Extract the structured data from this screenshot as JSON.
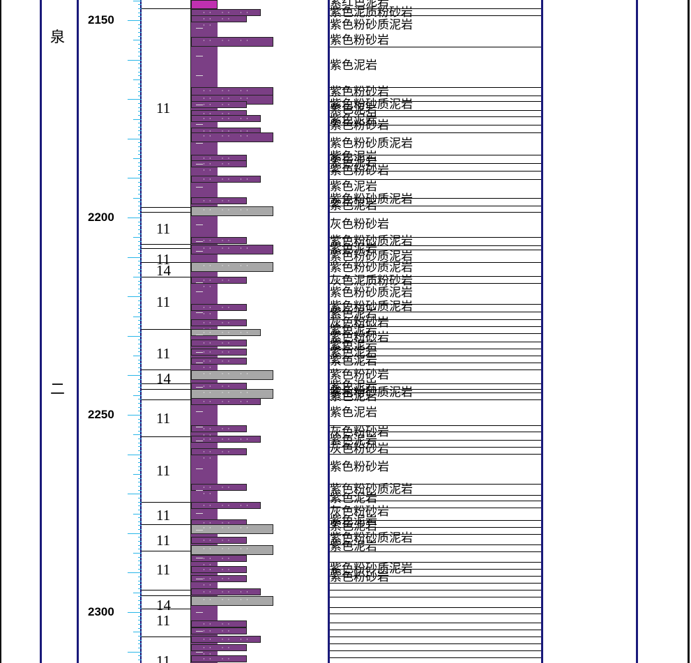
{
  "strata_names": [
    "泉",
    "二"
  ],
  "depth_labels": [
    "2150",
    "2200",
    "2250",
    "2300"
  ],
  "colors": {
    "frame": "#1a1a7a",
    "tick": "#29b6e8",
    "purple_column": "#7b3f85",
    "magenta": "#c030b0",
    "gray_sand": "#a8a8a8"
  },
  "layer_codes": [
    "11",
    "11",
    "11",
    "14",
    "11",
    "11",
    "14",
    "11",
    "11",
    "11",
    "11",
    "11",
    "14",
    "11",
    "11"
  ],
  "lithology_labels": [
    "紫红色泥岩",
    "紫色泥质粉砂岩",
    "紫色粉砂质泥岩",
    "紫色粉砂岩",
    "紫色泥岩",
    "紫色粉砂岩",
    "紫色粉砂质泥岩",
    "紫色泥岩",
    "紫色泥岩",
    "紫色粉砂岩",
    "紫色粉砂质泥岩",
    "紫色泥岩",
    "紫色泥岩",
    "紫色粉砂岩",
    "紫色泥岩",
    "紫色粉砂质泥岩",
    "紫色泥岩",
    "灰色粉砂岩",
    "紫色粉砂质泥岩",
    "紫色泥岩",
    "紫色粉砂质泥岩",
    "紫色粉砂质泥岩",
    "灰色泥质粉砂岩",
    "紫色粉砂质泥岩",
    "紫色粉砂质泥岩",
    "紫色泥岩",
    "灰色粉砂岩",
    "紫色泥岩",
    "紫色粉砂岩",
    "紫色泥岩",
    "紫色泥岩",
    "紫色泥岩",
    "紫色粉砂岩",
    "紫色泥岩",
    "紫色粉砂质泥岩",
    "紫色泥岩",
    "紫色泥岩",
    "灰色粉砂岩",
    "紫色泥岩",
    "灰色粉砂岩",
    "紫色粉砂岩",
    "紫色粉砂质泥岩",
    "紫色泥岩",
    "灰色粉砂岩",
    "紫色泥岩",
    "紫色泥岩",
    "紫色粉砂质泥岩",
    "紫色泥岩",
    "紫色粉砂质泥岩",
    "紫色粉砂岩"
  ]
}
